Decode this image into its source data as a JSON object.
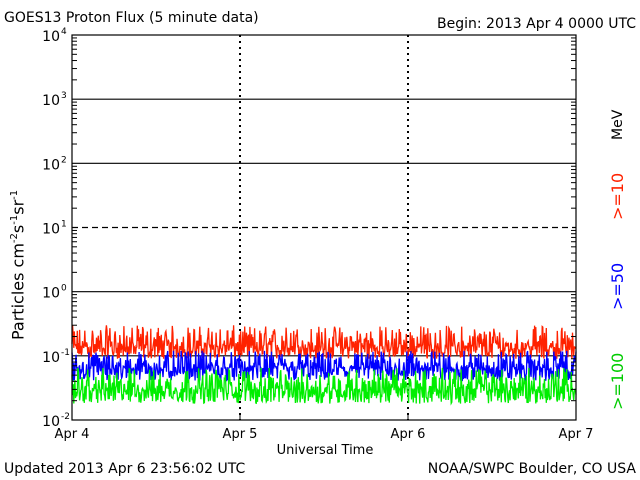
{
  "header": {
    "title": "GOES13 Proton Flux (5 minute data)",
    "begin": "Begin: 2013 Apr 4 0000 UTC"
  },
  "footer": {
    "updated": "Updated 2013 Apr  6 23:56:02 UTC",
    "credit": "NOAA/SWPC Boulder, CO USA"
  },
  "axis": {
    "y_label_main": "Particles cm",
    "y_label_sup": "-2",
    "y_label_s": "s",
    "y_label_sup2": "-1",
    "y_label_sr": "sr",
    "y_label_sup3": "-1",
    "unit": "MeV"
  },
  "colors": {
    "ge10": "#ff2200",
    "ge50": "#0000ff",
    "ge100": "#00ee00",
    "axis": "#000000",
    "background": "#ffffff"
  },
  "chart_data": {
    "type": "line",
    "title": "GOES13 Proton Flux (5 minute data)",
    "xlabel": "Universal Time",
    "ylabel": "Particles cm-2 s-1 sr-1",
    "yscale": "log",
    "ylim": [
      0.01,
      10000
    ],
    "x_ticks": [
      "Apr 4",
      "Apr 5",
      "Apr 6",
      "Apr 7"
    ],
    "y_ticks": [
      {
        "base": "10",
        "exp": "-2"
      },
      {
        "base": "10",
        "exp": "-1"
      },
      {
        "base": "10",
        "exp": "0"
      },
      {
        "base": "10",
        "exp": "1"
      },
      {
        "base": "10",
        "exp": "2"
      },
      {
        "base": "10",
        "exp": "3"
      },
      {
        "base": "10",
        "exp": "4"
      }
    ],
    "reference_lines": [
      {
        "value": 10,
        "style": "dashed"
      },
      {
        "value": 1,
        "style": "solid"
      },
      {
        "value": 100,
        "style": "solid"
      },
      {
        "value": 1000,
        "style": "solid"
      },
      {
        "value": 0.1,
        "style": "solid"
      }
    ],
    "series": [
      {
        "name": ">=10",
        "color": "#ff2200",
        "low": 0.09,
        "high": 0.3,
        "typical": 0.14
      },
      {
        "name": ">=50",
        "color": "#0000ff",
        "low": 0.04,
        "high": 0.12,
        "typical": 0.065
      },
      {
        "name": ">=100",
        "color": "#00ee00",
        "low": 0.018,
        "high": 0.065,
        "typical": 0.03
      }
    ]
  }
}
